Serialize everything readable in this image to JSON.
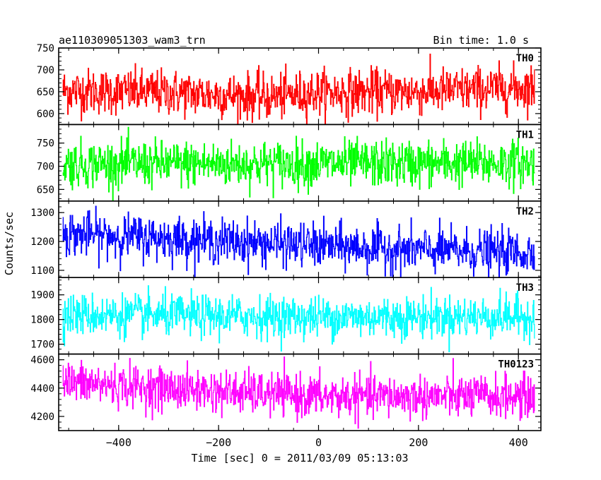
{
  "header": {
    "title": "ae110309051303_wam3_trn",
    "bin_time": "Bin time: 1.0 s"
  },
  "axes": {
    "xlabel": "Time [sec] 0 = 2011/03/09 05:13:03",
    "ylabel": "Counts/sec"
  },
  "chart_data": {
    "type": "line",
    "x_range": [
      -512,
      432
    ],
    "xlim": [
      -520,
      445
    ],
    "x_ticks": [
      -400,
      -200,
      0,
      200,
      400
    ],
    "x_tick_labels": [
      "−400",
      "−200",
      "0",
      "200",
      "400"
    ],
    "bin_seconds": 1.0,
    "panels": [
      {
        "name": "TH0",
        "color": "#ff0000",
        "ylim": [
          575,
          750
        ],
        "y_ticks": [
          600,
          650,
          700,
          750
        ],
        "mean_profile": [
          [
            -512,
            652
          ],
          [
            -300,
            648
          ],
          [
            -100,
            638
          ],
          [
            0,
            648
          ],
          [
            200,
            650
          ],
          [
            432,
            660
          ]
        ],
        "noise_sd": 26
      },
      {
        "name": "TH1",
        "color": "#00ff00",
        "ylim": [
          625,
          790
        ],
        "y_ticks": [
          650,
          700,
          750
        ],
        "mean_profile": [
          [
            -512,
            705
          ],
          [
            0,
            705
          ],
          [
            432,
            707
          ]
        ],
        "noise_sd": 25
      },
      {
        "name": "TH2",
        "color": "#0000ff",
        "ylim": [
          1075,
          1340
        ],
        "y_ticks": [
          1100,
          1200,
          1300
        ],
        "mean_profile": [
          [
            -512,
            1228
          ],
          [
            -300,
            1210
          ],
          [
            0,
            1185
          ],
          [
            200,
            1170
          ],
          [
            432,
            1160
          ]
        ],
        "noise_sd": 38
      },
      {
        "name": "TH3",
        "color": "#00ffff",
        "ylim": [
          1660,
          1970
        ],
        "y_ticks": [
          1700,
          1800,
          1900
        ],
        "mean_profile": [
          [
            -512,
            1820
          ],
          [
            0,
            1810
          ],
          [
            432,
            1812
          ]
        ],
        "noise_sd": 42
      },
      {
        "name": "TH0123",
        "color": "#ff00ff",
        "ylim": [
          4100,
          4640
        ],
        "y_ticks": [
          4200,
          4400,
          4600
        ],
        "mean_profile": [
          [
            -512,
            4440
          ],
          [
            -300,
            4395
          ],
          [
            0,
            4340
          ],
          [
            432,
            4340
          ]
        ],
        "noise_sd": 75
      }
    ]
  }
}
